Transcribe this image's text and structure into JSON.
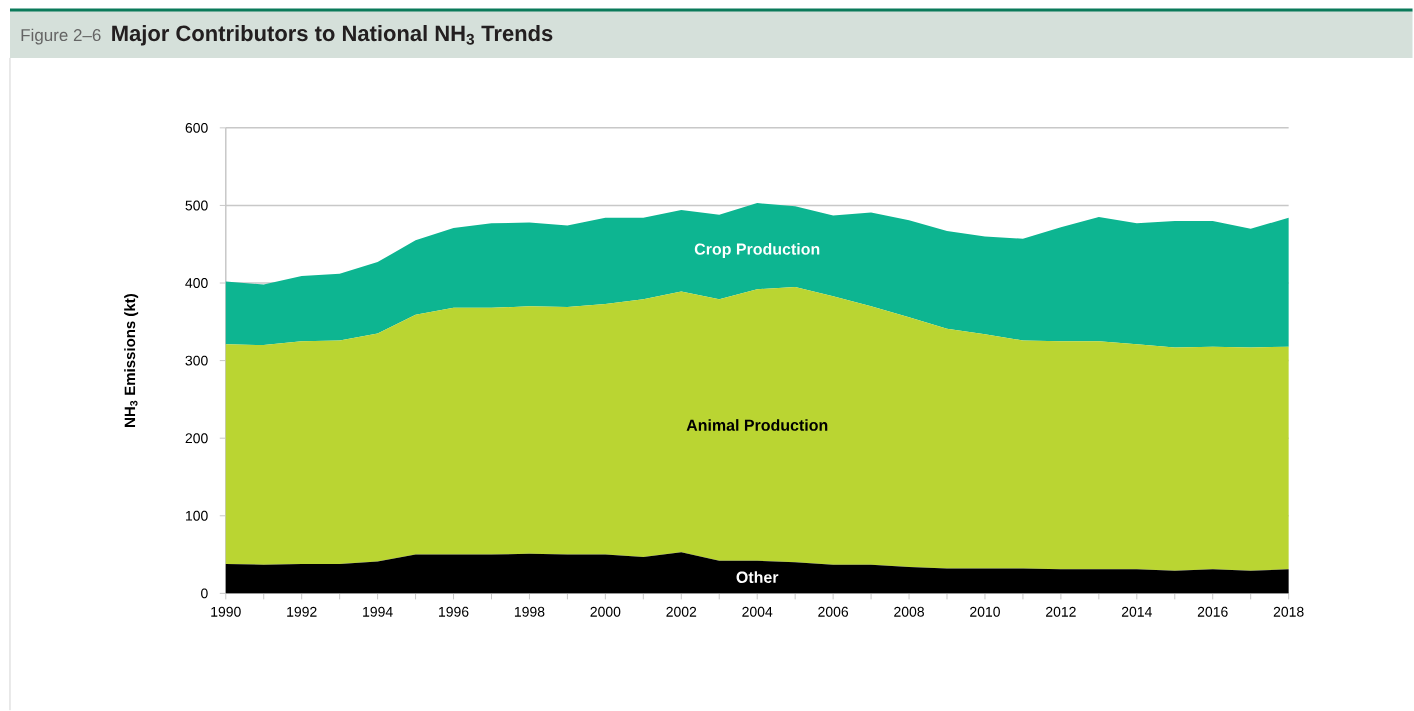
{
  "chart_data": {
    "type": "area",
    "title": "Major Contributors to National NH$_{3}$ Trends",
    "ylabel": "NH$_{3}$ Emissions (kt)",
    "annotations": [
      "Figure 2–6"
    ],
    "stacked": true,
    "grid": "y",
    "x": [
      1990,
      1991,
      1992,
      1993,
      1994,
      1995,
      1996,
      1997,
      1998,
      1999,
      2000,
      2001,
      2002,
      2003,
      2004,
      2005,
      2006,
      2007,
      2008,
      2009,
      2010,
      2011,
      2012,
      2013,
      2014,
      2015,
      2016,
      2017,
      2018
    ],
    "series": [
      {
        "name": "Other",
        "color": "#000000",
        "values": [
          38,
          37,
          38,
          38,
          41,
          50,
          50,
          50,
          51,
          50,
          50,
          47,
          53,
          42,
          42,
          40,
          37,
          37,
          34,
          32,
          32,
          32,
          31,
          31,
          31,
          29,
          31,
          29,
          31
        ]
      },
      {
        "name": "Animal Production",
        "color": "#bad532",
        "values": [
          283,
          283,
          287,
          288,
          294,
          309,
          318,
          318,
          319,
          319,
          323,
          332,
          336,
          337,
          350,
          355,
          346,
          333,
          322,
          309,
          302,
          294,
          294,
          294,
          290,
          288,
          287,
          288,
          287
        ]
      },
      {
        "name": "Crop Production",
        "color": "#0db591",
        "values": [
          81,
          78,
          84,
          86,
          92,
          96,
          103,
          109,
          108,
          105,
          111,
          105,
          105,
          109,
          111,
          104,
          104,
          121,
          125,
          126,
          126,
          131,
          147,
          160,
          156,
          163,
          162,
          153,
          166
        ]
      }
    ],
    "xlim": [
      1990,
      2018
    ],
    "ylim": [
      0,
      600
    ],
    "yticks": [
      0,
      100,
      200,
      300,
      400,
      500,
      600
    ],
    "xticks": [
      1990,
      {
        "value": 1991,
        "label": null
      },
      1992,
      {
        "value": 1993,
        "label": null
      },
      1994,
      {
        "value": 1995,
        "label": null
      },
      1996,
      {
        "value": 1997,
        "label": null
      },
      1998,
      {
        "value": 1999,
        "label": null
      },
      2000,
      {
        "value": 2001,
        "label": null
      },
      2002,
      {
        "value": 2003,
        "label": null
      },
      2004,
      {
        "value": 2005,
        "label": null
      },
      2006,
      {
        "value": 2007,
        "label": null
      },
      2008,
      {
        "value": 2009,
        "label": null
      },
      2010,
      {
        "value": 2011,
        "label": null
      },
      2012,
      {
        "value": 2013,
        "label": null
      },
      2014,
      {
        "value": 2015,
        "label": null
      },
      2016,
      {
        "value": 2017,
        "label": null
      },
      2018
    ]
  }
}
